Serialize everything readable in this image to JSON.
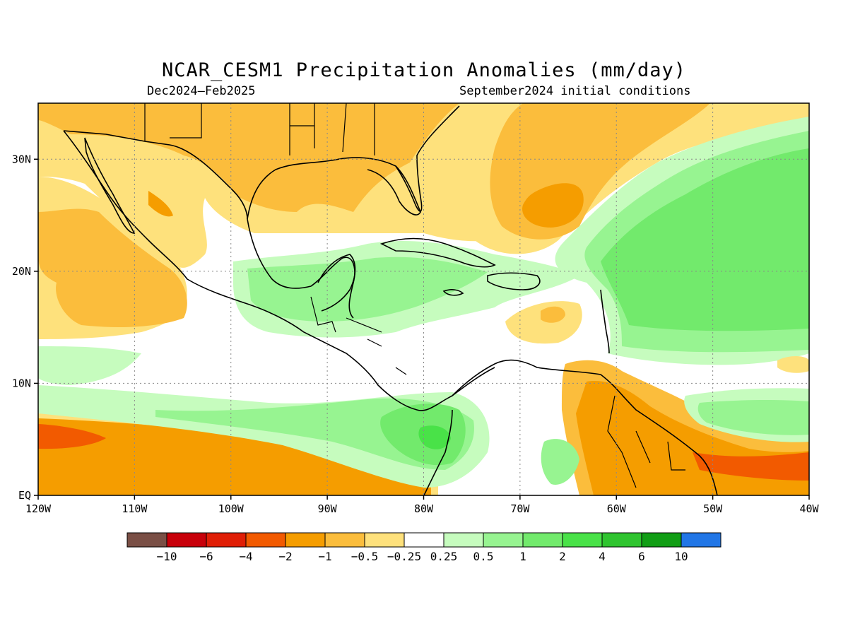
{
  "title": "NCAR_CESM1 Precipitation Anomalies (mm/day)",
  "period": "Dec2024–Feb2025",
  "init": "September2024 initial conditions",
  "map": {
    "lon_range": [
      -120,
      -40
    ],
    "lat_range": [
      0,
      35
    ],
    "lon_ticks": [
      {
        "value": -120,
        "label": "120W"
      },
      {
        "value": -110,
        "label": "110W"
      },
      {
        "value": -100,
        "label": "100W"
      },
      {
        "value": -90,
        "label": "90W"
      },
      {
        "value": -80,
        "label": "80W"
      },
      {
        "value": -70,
        "label": "70W"
      },
      {
        "value": -60,
        "label": "60W"
      },
      {
        "value": -50,
        "label": "50W"
      },
      {
        "value": -40,
        "label": "40W"
      }
    ],
    "lat_ticks": [
      {
        "value": 0,
        "label": "EQ"
      },
      {
        "value": 10,
        "label": "10N"
      },
      {
        "value": 20,
        "label": "20N"
      },
      {
        "value": 30,
        "label": "30N"
      }
    ]
  },
  "legend": {
    "colors": [
      "#7a4f45",
      "#c8000a",
      "#e01e06",
      "#f25a00",
      "#f59d00",
      "#fbbd3c",
      "#fee17c",
      "#ffffff",
      "#c6fcbe",
      "#97f491",
      "#72ea6c",
      "#49e248",
      "#2fc42f",
      "#119e15",
      "#2176e6"
    ],
    "labels": [
      "−10",
      "−6",
      "−4",
      "−2",
      "−1",
      "−0.5",
      "−0.25",
      "0.25",
      "0.5",
      "1",
      "2",
      "4",
      "6",
      "10"
    ]
  },
  "chart_data": {
    "type": "heatmap",
    "title": "NCAR_CESM1 Precipitation Anomalies (mm/day)",
    "x_range": [
      -120,
      -40
    ],
    "y_range": [
      0,
      35
    ],
    "regions": [
      {
        "level": -1,
        "label": "Gulf of Mexico / southeastern US",
        "value_range": [
          -1,
          -0.5
        ]
      },
      {
        "level": -2,
        "label": "subtropical North Atlantic (~28N, 68W)",
        "value_range": [
          -2,
          -1
        ]
      },
      {
        "level": -2,
        "label": "equatorial eastern Pacific (~5N)",
        "value_range": [
          -4,
          -1
        ]
      },
      {
        "level": -2,
        "label": "northern South America / Guianas",
        "value_range": [
          -4,
          -1
        ]
      },
      {
        "level": 1,
        "label": "Caribbean / Central America",
        "value_range": [
          0.5,
          2
        ]
      },
      {
        "level": 2,
        "label": "Panama / Colombia (~5N, 78W)",
        "value_range": [
          1,
          4
        ]
      },
      {
        "level": 1,
        "label": "tropical North Atlantic (~20N, 50W)",
        "value_range": [
          1,
          2
        ]
      }
    ]
  }
}
